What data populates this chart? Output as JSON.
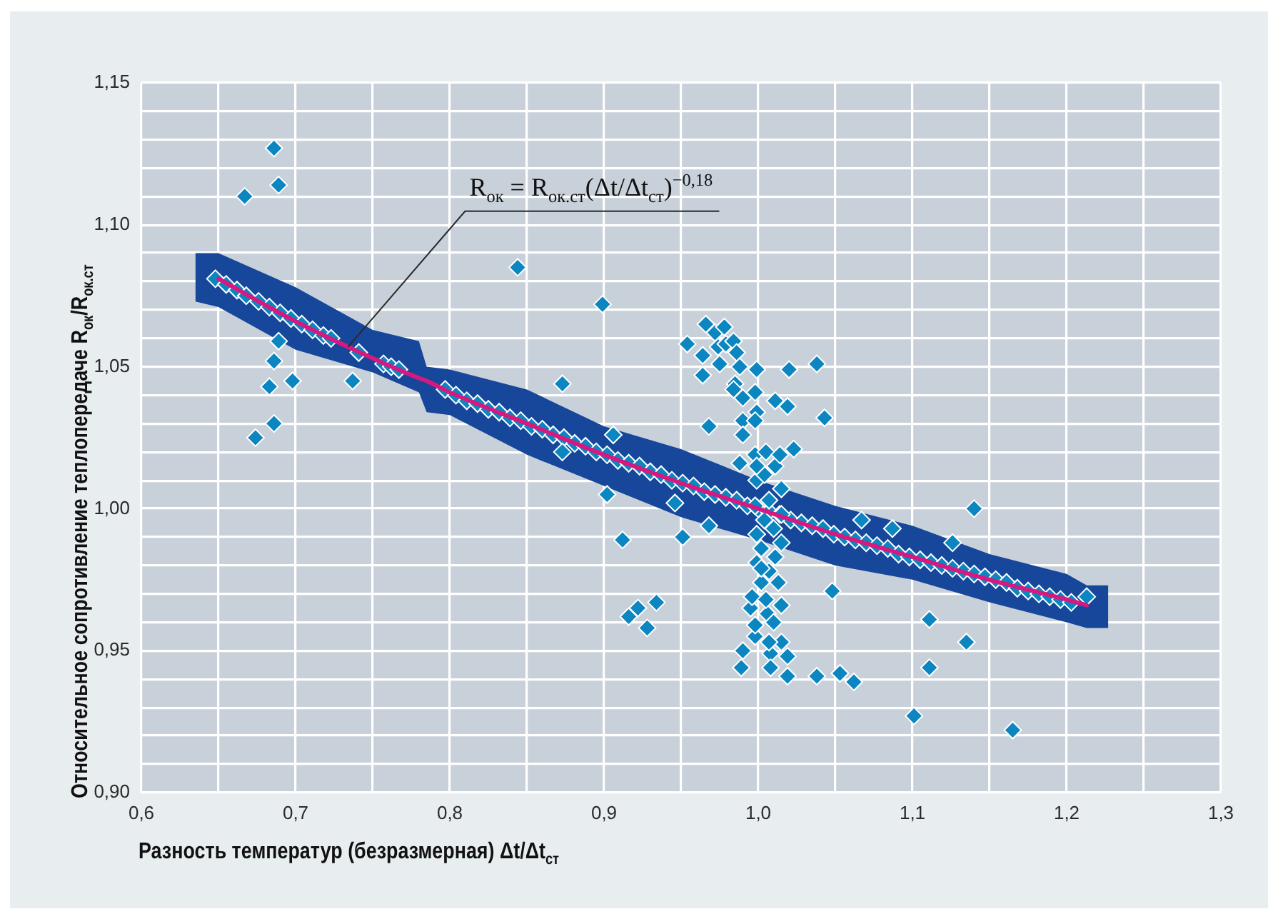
{
  "chart_data": {
    "type": "scatter",
    "xlabel": "Разность температур (безразмерная) Δt/Δt$_{ст}$",
    "ylabel": "Относительное сопротивление теплопередаче R$_{ок}$/R$_{ок.ст}$",
    "xlim": [
      0.6,
      1.3
    ],
    "ylim": [
      0.9,
      1.15
    ],
    "xticks": [
      {
        "value": 0.6,
        "label": "0,6"
      },
      {
        "value": 0.65,
        "label": null
      },
      {
        "value": 0.7,
        "label": "0,7"
      },
      {
        "value": 0.75,
        "label": null
      },
      {
        "value": 0.8,
        "label": "0,8"
      },
      {
        "value": 0.85,
        "label": null
      },
      {
        "value": 0.9,
        "label": "0,9"
      },
      {
        "value": 0.95,
        "label": null
      },
      {
        "value": 1.0,
        "label": "1,0"
      },
      {
        "value": 1.05,
        "label": null
      },
      {
        "value": 1.1,
        "label": "1,1"
      },
      {
        "value": 1.15,
        "label": null
      },
      {
        "value": 1.2,
        "label": "1,2"
      },
      {
        "value": 1.25,
        "label": null
      },
      {
        "value": 1.3,
        "label": "1,3"
      }
    ],
    "yticks": [
      {
        "value": 0.9,
        "label": "0,90"
      },
      {
        "value": 0.91,
        "label": null
      },
      {
        "value": 0.92,
        "label": null
      },
      {
        "value": 0.93,
        "label": null
      },
      {
        "value": 0.94,
        "label": null
      },
      {
        "value": 0.95,
        "label": "0,95"
      },
      {
        "value": 0.96,
        "label": null
      },
      {
        "value": 0.97,
        "label": null
      },
      {
        "value": 0.98,
        "label": null
      },
      {
        "value": 0.99,
        "label": null
      },
      {
        "value": 1.0,
        "label": "1,00"
      },
      {
        "value": 1.01,
        "label": null
      },
      {
        "value": 1.02,
        "label": null
      },
      {
        "value": 1.03,
        "label": null
      },
      {
        "value": 1.04,
        "label": null
      },
      {
        "value": 1.05,
        "label": "1,05"
      },
      {
        "value": 1.06,
        "label": null
      },
      {
        "value": 1.07,
        "label": null
      },
      {
        "value": 1.08,
        "label": null
      },
      {
        "value": 1.09,
        "label": null
      },
      {
        "value": 1.1,
        "label": "1,10"
      },
      {
        "value": 1.11,
        "label": null
      },
      {
        "value": 1.12,
        "label": null
      },
      {
        "value": 1.13,
        "label": null
      },
      {
        "value": 1.14,
        "label": null
      },
      {
        "value": 1.15,
        "label": "1,15"
      }
    ],
    "grid": true,
    "marker": "diamond",
    "series": [
      {
        "type": "line",
        "marker": "none",
        "color": "#d6197f",
        "x": [
          0.635,
          0.65,
          0.7,
          0.75,
          0.78,
          0.785,
          0.8,
          0.85,
          0.9,
          0.95,
          1.0,
          1.05,
          1.1,
          1.15,
          1.2,
          1.213,
          1.227
        ],
        "values": [
          null,
          1.081,
          1.066,
          1.053,
          1.046,
          1.045,
          1.041,
          1.03,
          1.019,
          1.009,
          1.0,
          0.991,
          0.983,
          0.975,
          0.968,
          0.966,
          null
        ],
        "lower": [
          1.073,
          1.071,
          1.056,
          1.048,
          1.041,
          1.034,
          1.033,
          1.019,
          1.008,
          0.997,
          0.989,
          0.98,
          0.975,
          0.967,
          0.96,
          0.958,
          0.958
        ],
        "upper": [
          1.09,
          1.09,
          1.078,
          1.063,
          1.059,
          1.05,
          1.049,
          1.042,
          1.029,
          1.021,
          1.01,
          1.001,
          0.994,
          0.984,
          0.977,
          0.973,
          0.973
        ]
      },
      {
        "type": "scatter",
        "color": "#0b86c1",
        "x": [
          0.648,
          0.655,
          0.662,
          0.668,
          0.676,
          0.683,
          0.69,
          0.697,
          0.704,
          0.711,
          0.718,
          0.723,
          0.741,
          0.757,
          0.762,
          0.767,
          0.797,
          0.804,
          0.811,
          0.818,
          0.825,
          0.832,
          0.839,
          0.846,
          0.853,
          0.86,
          0.867,
          0.874,
          0.881,
          0.888,
          0.895,
          0.902,
          0.909,
          0.916,
          0.923,
          0.93,
          0.937,
          0.944,
          0.951,
          0.958,
          0.965,
          0.972,
          0.979,
          0.986,
          0.993,
          1.0,
          1.007,
          1.014,
          1.021,
          1.028,
          1.035,
          1.042,
          1.049,
          1.056,
          1.063,
          1.07,
          1.077,
          1.084,
          1.091,
          1.098,
          1.105,
          1.112,
          1.119,
          1.126,
          1.133,
          1.14,
          1.147,
          1.154,
          1.161,
          1.168,
          1.175,
          1.182,
          1.189,
          1.196,
          1.203,
          1.213,
          0.686,
          0.689,
          0.667,
          0.844,
          0.899,
          0.689,
          0.686,
          0.683,
          0.698,
          0.737,
          0.686,
          0.674,
          0.873,
          0.873,
          0.902,
          0.906,
          0.912,
          0.916,
          0.922,
          0.934,
          0.928,
          0.946,
          0.951,
          0.968,
          0.954,
          0.964,
          0.964,
          0.966,
          0.972,
          0.974,
          0.975,
          0.968,
          0.978,
          0.979,
          0.984,
          0.986,
          0.988,
          0.985,
          0.984,
          0.99,
          0.998,
          0.999,
          0.99,
          0.999,
          0.998,
          0.99,
          0.988,
          0.998,
          1.02,
          1.038,
          1.011,
          1.019,
          1.043,
          1.023,
          1.067,
          1.048,
          0.995,
          1.006,
          1.01,
          0.998,
          0.99,
          0.989,
          1.008,
          1.015,
          1.019,
          1.008,
          1.019,
          1.038,
          1.053,
          1.062,
          0.996,
          1.002,
          1.013,
          1.007,
          0.999,
          1.011,
          1.002,
          1.015,
          0.999,
          1.01,
          1.004,
          1.015,
          0.998,
          1.007,
          1.015,
          0.999,
          1.004,
          1.011,
          0.999,
          1.005,
          1.014,
          1.002,
          1.005,
          1.015,
          0.998,
          1.007,
          1.087,
          1.126,
          1.14,
          1.111,
          1.135,
          1.111,
          1.101,
          1.165
        ],
        "values": [
          1.081,
          1.079,
          1.077,
          1.075,
          1.073,
          1.071,
          1.069,
          1.067,
          1.065,
          1.063,
          1.061,
          1.06,
          1.055,
          1.051,
          1.05,
          1.049,
          1.042,
          1.04,
          1.038,
          1.037,
          1.035,
          1.034,
          1.032,
          1.031,
          1.029,
          1.028,
          1.026,
          1.025,
          1.023,
          1.022,
          1.02,
          1.019,
          1.017,
          1.016,
          1.015,
          1.013,
          1.012,
          1.01,
          1.009,
          1.008,
          1.006,
          1.005,
          1.004,
          1.003,
          1.001,
          1.0,
          0.999,
          0.998,
          0.996,
          0.995,
          0.994,
          0.993,
          0.991,
          0.99,
          0.989,
          0.988,
          0.987,
          0.986,
          0.984,
          0.983,
          0.982,
          0.981,
          0.98,
          0.979,
          0.978,
          0.977,
          0.976,
          0.975,
          0.974,
          0.972,
          0.971,
          0.97,
          0.969,
          0.968,
          0.967,
          0.969,
          1.127,
          1.114,
          1.11,
          1.085,
          1.072,
          1.059,
          1.052,
          1.043,
          1.045,
          1.045,
          1.03,
          1.025,
          1.044,
          1.02,
          1.005,
          1.026,
          0.989,
          0.962,
          0.965,
          0.967,
          0.958,
          1.002,
          0.99,
          0.994,
          1.058,
          1.047,
          1.054,
          1.065,
          1.062,
          1.057,
          1.051,
          1.029,
          1.064,
          1.058,
          1.059,
          1.055,
          1.05,
          1.044,
          1.042,
          1.039,
          1.041,
          1.049,
          1.031,
          1.034,
          1.031,
          1.026,
          1.016,
          1.019,
          1.049,
          1.051,
          1.038,
          1.036,
          1.032,
          1.021,
          0.996,
          0.971,
          0.965,
          0.963,
          0.96,
          0.955,
          0.95,
          0.944,
          0.949,
          0.953,
          0.948,
          0.944,
          0.941,
          0.941,
          0.942,
          0.939,
          0.969,
          0.974,
          0.974,
          0.978,
          0.981,
          0.983,
          0.986,
          0.988,
          0.991,
          0.993,
          0.996,
          0.998,
          1.001,
          1.003,
          1.007,
          1.01,
          1.012,
          1.015,
          1.015,
          1.02,
          1.019,
          0.979,
          0.968,
          0.966,
          0.959,
          0.953,
          0.993,
          0.988,
          1.0,
          0.961,
          0.953,
          0.944,
          0.927,
          0.922
        ]
      }
    ],
    "annotations": [
      {
        "text": "R$_{ок}$ = R$_{ок.ст}$(Δt/Δt$_{ст}$)$^{−0,18}$",
        "x": 0.734,
        "y": 1.057
      }
    ]
  }
}
